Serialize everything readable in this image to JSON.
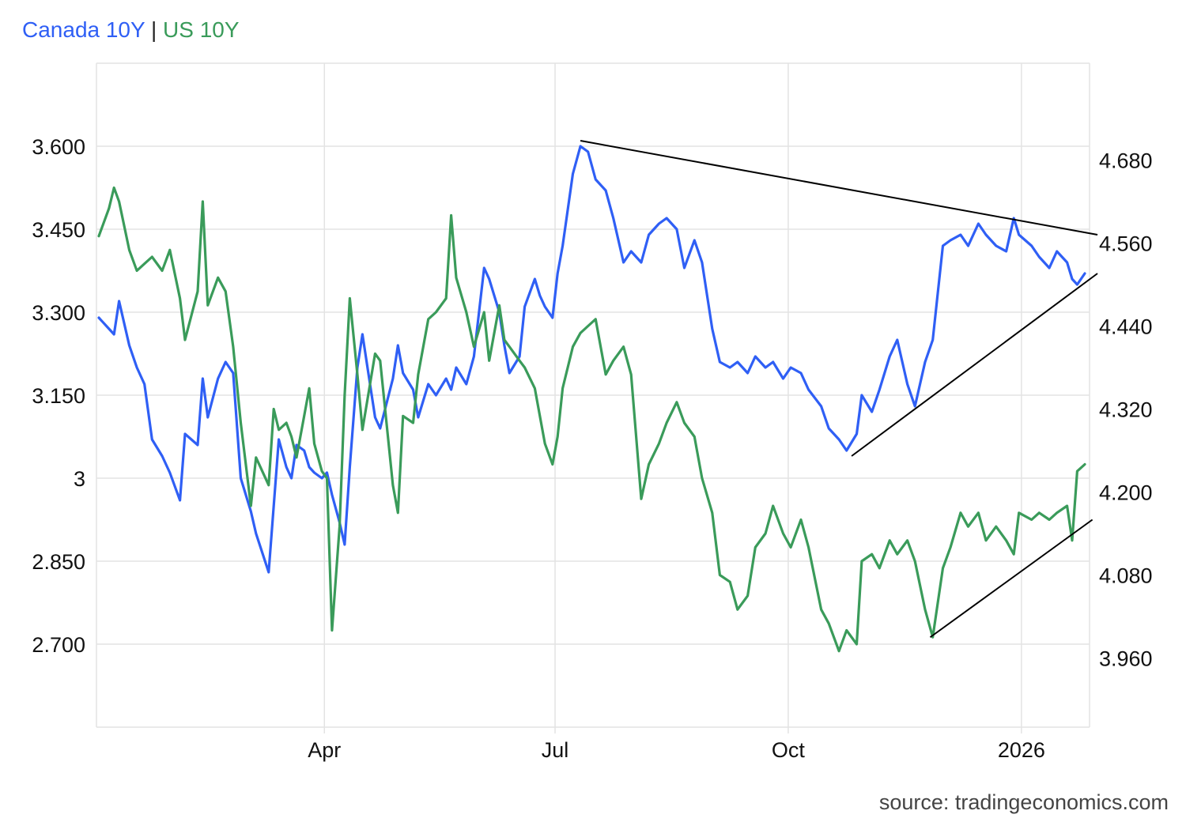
{
  "legend": {
    "series1": "Canada 10Y",
    "separator": "|",
    "series2": "US 10Y"
  },
  "source": "source: tradingeconomics.com",
  "colors": {
    "canada": "#2f5ff5",
    "us": "#3a9b5a",
    "trendline": "#000000",
    "grid": "#e3e3e3"
  },
  "chart_data": {
    "type": "line",
    "title": "",
    "grid": true,
    "legend_position": "top-left",
    "x_range": [
      "2025-01-02",
      "2026-01-26"
    ],
    "x_ticks": [
      {
        "date": "2025-04-01",
        "label": "Apr"
      },
      {
        "date": "2025-07-01",
        "label": "Jul"
      },
      {
        "date": "2025-10-01",
        "label": "Oct"
      },
      {
        "date": "2026-01-01",
        "label": "2026"
      }
    ],
    "left_axis": {
      "series": "Canada 10Y",
      "ylim": [
        2.55,
        3.75
      ],
      "ticks": [
        2.7,
        2.85,
        3.0,
        3.15,
        3.3,
        3.45,
        3.6
      ],
      "tick_labels": [
        "2.700",
        "2.850",
        "3",
        "3.150",
        "3.300",
        "3.450",
        "3.600"
      ]
    },
    "right_axis": {
      "series": "US 10Y",
      "ylim": [
        3.86,
        4.82
      ],
      "ticks": [
        3.96,
        4.08,
        4.2,
        4.32,
        4.44,
        4.56,
        4.68
      ],
      "tick_labels": [
        "3.960",
        "4.080",
        "4.200",
        "4.320",
        "4.440",
        "4.560",
        "4.680"
      ]
    },
    "series": [
      {
        "name": "Canada 10Y",
        "axis": "left",
        "points": [
          [
            "2025-01-02",
            3.29
          ],
          [
            "2025-01-06",
            3.27
          ],
          [
            "2025-01-08",
            3.26
          ],
          [
            "2025-01-10",
            3.32
          ],
          [
            "2025-01-14",
            3.24
          ],
          [
            "2025-01-17",
            3.2
          ],
          [
            "2025-01-20",
            3.17
          ],
          [
            "2025-01-23",
            3.07
          ],
          [
            "2025-01-27",
            3.04
          ],
          [
            "2025-01-30",
            3.01
          ],
          [
            "2025-02-03",
            2.96
          ],
          [
            "2025-02-05",
            3.08
          ],
          [
            "2025-02-10",
            3.06
          ],
          [
            "2025-02-12",
            3.18
          ],
          [
            "2025-02-14",
            3.11
          ],
          [
            "2025-02-18",
            3.18
          ],
          [
            "2025-02-21",
            3.21
          ],
          [
            "2025-02-24",
            3.19
          ],
          [
            "2025-02-27",
            3.0
          ],
          [
            "2025-03-03",
            2.94
          ],
          [
            "2025-03-05",
            2.9
          ],
          [
            "2025-03-10",
            2.83
          ],
          [
            "2025-03-12",
            2.95
          ],
          [
            "2025-03-14",
            3.07
          ],
          [
            "2025-03-17",
            3.02
          ],
          [
            "2025-03-19",
            3.0
          ],
          [
            "2025-03-21",
            3.06
          ],
          [
            "2025-03-24",
            3.05
          ],
          [
            "2025-03-26",
            3.02
          ],
          [
            "2025-03-28",
            3.01
          ],
          [
            "2025-03-31",
            3.0
          ],
          [
            "2025-04-02",
            3.01
          ],
          [
            "2025-04-04",
            2.97
          ],
          [
            "2025-04-07",
            2.92
          ],
          [
            "2025-04-09",
            2.88
          ],
          [
            "2025-04-11",
            3.02
          ],
          [
            "2025-04-14",
            3.2
          ],
          [
            "2025-04-16",
            3.26
          ],
          [
            "2025-04-21",
            3.11
          ],
          [
            "2025-04-23",
            3.09
          ],
          [
            "2025-04-28",
            3.18
          ],
          [
            "2025-04-30",
            3.24
          ],
          [
            "2025-05-02",
            3.19
          ],
          [
            "2025-05-06",
            3.16
          ],
          [
            "2025-05-08",
            3.11
          ],
          [
            "2025-05-12",
            3.17
          ],
          [
            "2025-05-15",
            3.15
          ],
          [
            "2025-05-19",
            3.18
          ],
          [
            "2025-05-21",
            3.16
          ],
          [
            "2025-05-23",
            3.2
          ],
          [
            "2025-05-27",
            3.17
          ],
          [
            "2025-05-30",
            3.22
          ],
          [
            "2025-06-03",
            3.38
          ],
          [
            "2025-06-05",
            3.36
          ],
          [
            "2025-06-09",
            3.3
          ],
          [
            "2025-06-11",
            3.24
          ],
          [
            "2025-06-13",
            3.19
          ],
          [
            "2025-06-17",
            3.22
          ],
          [
            "2025-06-19",
            3.31
          ],
          [
            "2025-06-23",
            3.36
          ],
          [
            "2025-06-25",
            3.33
          ],
          [
            "2025-06-27",
            3.31
          ],
          [
            "2025-06-30",
            3.29
          ],
          [
            "2025-07-02",
            3.37
          ],
          [
            "2025-07-04",
            3.42
          ],
          [
            "2025-07-08",
            3.55
          ],
          [
            "2025-07-11",
            3.6
          ],
          [
            "2025-07-14",
            3.59
          ],
          [
            "2025-07-17",
            3.54
          ],
          [
            "2025-07-21",
            3.52
          ],
          [
            "2025-07-24",
            3.47
          ],
          [
            "2025-07-28",
            3.39
          ],
          [
            "2025-07-31",
            3.41
          ],
          [
            "2025-08-04",
            3.39
          ],
          [
            "2025-08-07",
            3.44
          ],
          [
            "2025-08-11",
            3.46
          ],
          [
            "2025-08-14",
            3.47
          ],
          [
            "2025-08-18",
            3.45
          ],
          [
            "2025-08-21",
            3.38
          ],
          [
            "2025-08-25",
            3.43
          ],
          [
            "2025-08-28",
            3.39
          ],
          [
            "2025-09-01",
            3.27
          ],
          [
            "2025-09-04",
            3.21
          ],
          [
            "2025-09-08",
            3.2
          ],
          [
            "2025-09-11",
            3.21
          ],
          [
            "2025-09-15",
            3.19
          ],
          [
            "2025-09-18",
            3.22
          ],
          [
            "2025-09-22",
            3.2
          ],
          [
            "2025-09-25",
            3.21
          ],
          [
            "2025-09-29",
            3.18
          ],
          [
            "2025-10-02",
            3.2
          ],
          [
            "2025-10-06",
            3.19
          ],
          [
            "2025-10-09",
            3.16
          ],
          [
            "2025-10-14",
            3.13
          ],
          [
            "2025-10-17",
            3.09
          ],
          [
            "2025-10-21",
            3.07
          ],
          [
            "2025-10-24",
            3.05
          ],
          [
            "2025-10-28",
            3.08
          ],
          [
            "2025-10-30",
            3.15
          ],
          [
            "2025-11-03",
            3.12
          ],
          [
            "2025-11-06",
            3.16
          ],
          [
            "2025-11-10",
            3.22
          ],
          [
            "2025-11-13",
            3.25
          ],
          [
            "2025-11-17",
            3.17
          ],
          [
            "2025-11-20",
            3.13
          ],
          [
            "2025-11-24",
            3.21
          ],
          [
            "2025-11-27",
            3.25
          ],
          [
            "2025-12-01",
            3.42
          ],
          [
            "2025-12-04",
            3.43
          ],
          [
            "2025-12-08",
            3.44
          ],
          [
            "2025-12-11",
            3.42
          ],
          [
            "2025-12-15",
            3.46
          ],
          [
            "2025-12-18",
            3.44
          ],
          [
            "2025-12-22",
            3.42
          ],
          [
            "2025-12-26",
            3.41
          ],
          [
            "2025-12-29",
            3.47
          ],
          [
            "2025-12-31",
            3.44
          ],
          [
            "2026-01-05",
            3.42
          ],
          [
            "2026-01-08",
            3.4
          ],
          [
            "2026-01-12",
            3.38
          ],
          [
            "2026-01-15",
            3.41
          ],
          [
            "2026-01-19",
            3.39
          ],
          [
            "2026-01-21",
            3.36
          ],
          [
            "2026-01-23",
            3.35
          ],
          [
            "2026-01-26",
            3.37
          ]
        ]
      },
      {
        "name": "US 10Y",
        "axis": "right",
        "points": [
          [
            "2025-01-02",
            4.57
          ],
          [
            "2025-01-06",
            4.61
          ],
          [
            "2025-01-08",
            4.64
          ],
          [
            "2025-01-10",
            4.62
          ],
          [
            "2025-01-14",
            4.55
          ],
          [
            "2025-01-17",
            4.52
          ],
          [
            "2025-01-20",
            4.53
          ],
          [
            "2025-01-23",
            4.54
          ],
          [
            "2025-01-27",
            4.52
          ],
          [
            "2025-01-30",
            4.55
          ],
          [
            "2025-02-03",
            4.48
          ],
          [
            "2025-02-05",
            4.42
          ],
          [
            "2025-02-10",
            4.49
          ],
          [
            "2025-02-12",
            4.62
          ],
          [
            "2025-02-14",
            4.47
          ],
          [
            "2025-02-18",
            4.51
          ],
          [
            "2025-02-21",
            4.49
          ],
          [
            "2025-02-24",
            4.41
          ],
          [
            "2025-02-27",
            4.3
          ],
          [
            "2025-03-03",
            4.18
          ],
          [
            "2025-03-05",
            4.25
          ],
          [
            "2025-03-10",
            4.21
          ],
          [
            "2025-03-12",
            4.32
          ],
          [
            "2025-03-14",
            4.29
          ],
          [
            "2025-03-17",
            4.3
          ],
          [
            "2025-03-19",
            4.28
          ],
          [
            "2025-03-21",
            4.25
          ],
          [
            "2025-03-24",
            4.31
          ],
          [
            "2025-03-26",
            4.35
          ],
          [
            "2025-03-28",
            4.27
          ],
          [
            "2025-03-31",
            4.23
          ],
          [
            "2025-04-02",
            4.22
          ],
          [
            "2025-04-04",
            4.0
          ],
          [
            "2025-04-07",
            4.15
          ],
          [
            "2025-04-09",
            4.34
          ],
          [
            "2025-04-11",
            4.48
          ],
          [
            "2025-04-14",
            4.37
          ],
          [
            "2025-04-16",
            4.29
          ],
          [
            "2025-04-21",
            4.4
          ],
          [
            "2025-04-23",
            4.39
          ],
          [
            "2025-04-28",
            4.21
          ],
          [
            "2025-04-30",
            4.17
          ],
          [
            "2025-05-02",
            4.31
          ],
          [
            "2025-05-06",
            4.3
          ],
          [
            "2025-05-08",
            4.37
          ],
          [
            "2025-05-12",
            4.45
          ],
          [
            "2025-05-15",
            4.46
          ],
          [
            "2025-05-19",
            4.48
          ],
          [
            "2025-05-21",
            4.6
          ],
          [
            "2025-05-23",
            4.51
          ],
          [
            "2025-05-27",
            4.46
          ],
          [
            "2025-05-30",
            4.41
          ],
          [
            "2025-06-03",
            4.46
          ],
          [
            "2025-06-05",
            4.39
          ],
          [
            "2025-06-09",
            4.47
          ],
          [
            "2025-06-11",
            4.42
          ],
          [
            "2025-06-13",
            4.41
          ],
          [
            "2025-06-17",
            4.39
          ],
          [
            "2025-06-19",
            4.38
          ],
          [
            "2025-06-23",
            4.35
          ],
          [
            "2025-06-25",
            4.31
          ],
          [
            "2025-06-27",
            4.27
          ],
          [
            "2025-06-30",
            4.24
          ],
          [
            "2025-07-02",
            4.28
          ],
          [
            "2025-07-04",
            4.35
          ],
          [
            "2025-07-08",
            4.41
          ],
          [
            "2025-07-11",
            4.43
          ],
          [
            "2025-07-14",
            4.44
          ],
          [
            "2025-07-17",
            4.45
          ],
          [
            "2025-07-21",
            4.37
          ],
          [
            "2025-07-24",
            4.39
          ],
          [
            "2025-07-28",
            4.41
          ],
          [
            "2025-07-31",
            4.37
          ],
          [
            "2025-08-04",
            4.19
          ],
          [
            "2025-08-07",
            4.24
          ],
          [
            "2025-08-11",
            4.27
          ],
          [
            "2025-08-14",
            4.3
          ],
          [
            "2025-08-18",
            4.33
          ],
          [
            "2025-08-21",
            4.3
          ],
          [
            "2025-08-25",
            4.28
          ],
          [
            "2025-08-28",
            4.22
          ],
          [
            "2025-09-01",
            4.17
          ],
          [
            "2025-09-04",
            4.08
          ],
          [
            "2025-09-08",
            4.07
          ],
          [
            "2025-09-11",
            4.03
          ],
          [
            "2025-09-15",
            4.05
          ],
          [
            "2025-09-18",
            4.12
          ],
          [
            "2025-09-22",
            4.14
          ],
          [
            "2025-09-25",
            4.18
          ],
          [
            "2025-09-29",
            4.14
          ],
          [
            "2025-10-02",
            4.12
          ],
          [
            "2025-10-06",
            4.16
          ],
          [
            "2025-10-09",
            4.12
          ],
          [
            "2025-10-14",
            4.03
          ],
          [
            "2025-10-17",
            4.01
          ],
          [
            "2025-10-21",
            3.97
          ],
          [
            "2025-10-24",
            4.0
          ],
          [
            "2025-10-28",
            3.98
          ],
          [
            "2025-10-30",
            4.1
          ],
          [
            "2025-11-03",
            4.11
          ],
          [
            "2025-11-06",
            4.09
          ],
          [
            "2025-11-10",
            4.13
          ],
          [
            "2025-11-13",
            4.11
          ],
          [
            "2025-11-17",
            4.13
          ],
          [
            "2025-11-20",
            4.1
          ],
          [
            "2025-11-24",
            4.03
          ],
          [
            "2025-11-27",
            3.99
          ],
          [
            "2025-12-01",
            4.09
          ],
          [
            "2025-12-04",
            4.12
          ],
          [
            "2025-12-08",
            4.17
          ],
          [
            "2025-12-11",
            4.15
          ],
          [
            "2025-12-15",
            4.17
          ],
          [
            "2025-12-18",
            4.13
          ],
          [
            "2025-12-22",
            4.15
          ],
          [
            "2025-12-26",
            4.13
          ],
          [
            "2025-12-29",
            4.11
          ],
          [
            "2025-12-31",
            4.17
          ],
          [
            "2026-01-05",
            4.16
          ],
          [
            "2026-01-08",
            4.17
          ],
          [
            "2026-01-12",
            4.16
          ],
          [
            "2026-01-15",
            4.17
          ],
          [
            "2026-01-19",
            4.18
          ],
          [
            "2026-01-21",
            4.13
          ],
          [
            "2026-01-23",
            4.23
          ],
          [
            "2026-01-26",
            4.24
          ]
        ]
      }
    ],
    "annotations": [
      {
        "type": "trendline",
        "axis": "left",
        "from": [
          "2025-07-11",
          3.61
        ],
        "to": [
          "2026-01-31",
          3.44
        ]
      },
      {
        "type": "trendline",
        "axis": "left",
        "from": [
          "2025-10-26",
          3.04
        ],
        "to": [
          "2026-01-31",
          3.37
        ]
      },
      {
        "type": "trendline",
        "axis": "right",
        "from": [
          "2025-11-26",
          3.99
        ],
        "to": [
          "2026-01-29",
          4.16
        ]
      }
    ]
  }
}
